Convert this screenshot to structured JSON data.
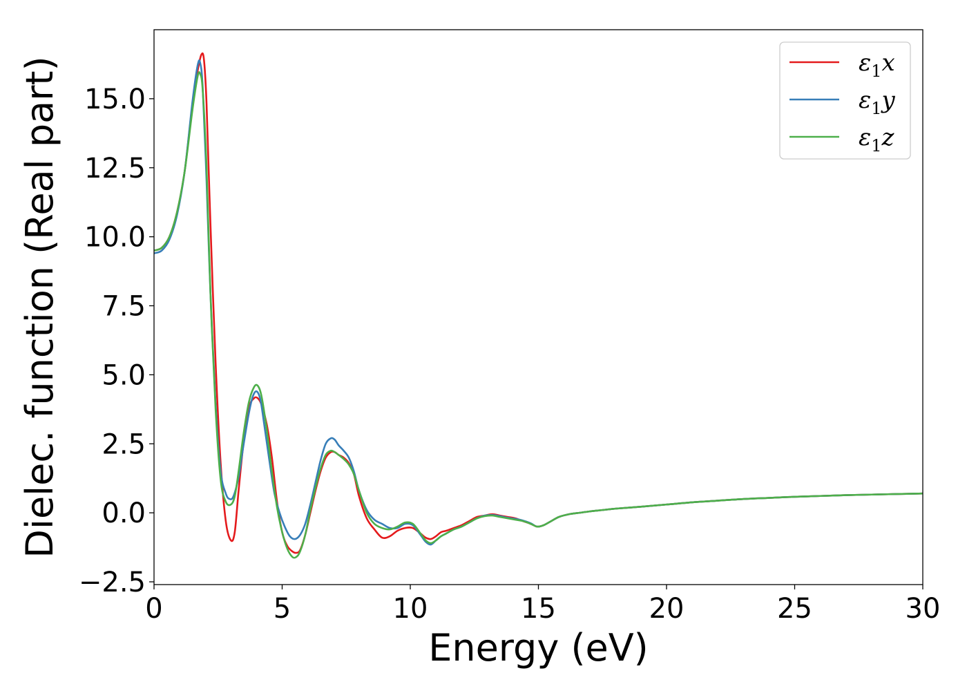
{
  "chart_data": {
    "type": "line",
    "title": "",
    "xlabel": "Energy (eV)",
    "ylabel": "Dielec. function (Real part)",
    "xlim": [
      0,
      30
    ],
    "ylim": [
      -2.6,
      17.5
    ],
    "xticks": [
      0,
      5,
      10,
      15,
      20,
      25,
      30
    ],
    "xtick_labels": [
      "0",
      "5",
      "10",
      "15",
      "20",
      "25",
      "30"
    ],
    "yticks": [
      -2.5,
      0.0,
      2.5,
      5.0,
      7.5,
      10.0,
      12.5,
      15.0
    ],
    "ytick_labels": [
      "−2.5",
      "0.0",
      "2.5",
      "5.0",
      "7.5",
      "10.0",
      "12.5",
      "15.0"
    ],
    "grid": false,
    "legend_position": "top-right",
    "series": [
      {
        "name": "ε₁x",
        "symbol": "ε",
        "subscript": "1",
        "suffix": "x",
        "color": "#e41a1c",
        "x": [
          0,
          0.3,
          0.6,
          0.9,
          1.2,
          1.5,
          1.7,
          1.85,
          1.95,
          2.05,
          2.2,
          2.4,
          2.6,
          2.8,
          3.0,
          3.15,
          3.3,
          3.5,
          3.7,
          3.9,
          4.05,
          4.2,
          4.4,
          4.6,
          4.8,
          5.0,
          5.2,
          5.4,
          5.55,
          5.7,
          5.9,
          6.1,
          6.3,
          6.5,
          6.7,
          6.9,
          7.05,
          7.2,
          7.4,
          7.6,
          7.8,
          8.0,
          8.3,
          8.6,
          8.9,
          9.2,
          9.5,
          9.8,
          10.1,
          10.4,
          10.6,
          10.8,
          11.0,
          11.2,
          11.4,
          11.7,
          12.0,
          12.3,
          12.6,
          12.9,
          13.2,
          13.5,
          13.8,
          14.1,
          14.4,
          14.7,
          14.95,
          15.2,
          15.5,
          15.8,
          16.2,
          16.6,
          17.0,
          17.5,
          18,
          19,
          20,
          21,
          22,
          23,
          24,
          25,
          26,
          27,
          28,
          29,
          30
        ],
        "y": [
          9.5,
          9.6,
          10.0,
          10.9,
          12.4,
          14.8,
          16.0,
          16.6,
          16.4,
          14.8,
          10.5,
          5.5,
          1.8,
          -0.3,
          -1.0,
          -0.7,
          0.8,
          2.6,
          3.8,
          4.15,
          4.15,
          3.9,
          3.2,
          2.0,
          0.4,
          -0.7,
          -1.2,
          -1.4,
          -1.45,
          -1.35,
          -0.8,
          0.0,
          0.8,
          1.5,
          2.0,
          2.2,
          2.2,
          2.1,
          2.0,
          1.8,
          1.4,
          0.6,
          -0.2,
          -0.6,
          -0.9,
          -0.85,
          -0.65,
          -0.55,
          -0.55,
          -0.75,
          -0.9,
          -0.95,
          -0.85,
          -0.7,
          -0.65,
          -0.55,
          -0.45,
          -0.3,
          -0.15,
          -0.1,
          -0.05,
          -0.1,
          -0.15,
          -0.2,
          -0.3,
          -0.4,
          -0.5,
          -0.45,
          -0.3,
          -0.15,
          -0.05,
          0.0,
          0.05,
          0.1,
          0.15,
          0.22,
          0.3,
          0.38,
          0.44,
          0.5,
          0.54,
          0.58,
          0.61,
          0.64,
          0.66,
          0.68,
          0.7
        ]
      },
      {
        "name": "ε₁y",
        "symbol": "ε",
        "subscript": "1",
        "suffix": "y",
        "color": "#377eb8",
        "x": [
          0,
          0.3,
          0.6,
          0.9,
          1.2,
          1.5,
          1.7,
          1.8,
          1.9,
          2.05,
          2.2,
          2.4,
          2.6,
          2.8,
          2.95,
          3.1,
          3.3,
          3.5,
          3.7,
          3.85,
          4.0,
          4.15,
          4.3,
          4.5,
          4.7,
          4.9,
          5.1,
          5.3,
          5.5,
          5.7,
          5.9,
          6.1,
          6.3,
          6.5,
          6.7,
          6.9,
          7.05,
          7.2,
          7.4,
          7.6,
          7.8,
          8.0,
          8.3,
          8.6,
          8.9,
          9.2,
          9.5,
          9.8,
          10.1,
          10.4,
          10.6,
          10.8,
          11.0,
          11.2,
          11.4,
          11.7,
          12.0,
          12.3,
          12.6,
          12.9,
          13.2,
          13.5,
          13.8,
          14.1,
          14.4,
          14.7,
          14.95,
          15.2,
          15.5,
          15.8,
          16.2,
          16.6,
          17.0,
          17.5,
          18,
          19,
          20,
          21,
          22,
          23,
          24,
          25,
          26,
          27,
          28,
          29,
          30
        ],
        "y": [
          9.4,
          9.5,
          9.9,
          10.8,
          12.4,
          14.9,
          16.2,
          16.3,
          15.4,
          12.0,
          8.0,
          4.0,
          1.5,
          0.7,
          0.5,
          0.6,
          1.3,
          2.5,
          3.6,
          4.2,
          4.4,
          4.1,
          3.2,
          1.9,
          0.7,
          0.0,
          -0.5,
          -0.85,
          -0.95,
          -0.8,
          -0.4,
          0.3,
          1.1,
          1.9,
          2.5,
          2.7,
          2.65,
          2.45,
          2.25,
          2.0,
          1.5,
          0.8,
          0.1,
          -0.25,
          -0.4,
          -0.55,
          -0.55,
          -0.4,
          -0.45,
          -0.8,
          -1.05,
          -1.15,
          -1.0,
          -0.85,
          -0.75,
          -0.6,
          -0.5,
          -0.35,
          -0.2,
          -0.1,
          -0.08,
          -0.12,
          -0.18,
          -0.22,
          -0.28,
          -0.38,
          -0.5,
          -0.45,
          -0.3,
          -0.15,
          -0.05,
          0.0,
          0.05,
          0.1,
          0.15,
          0.22,
          0.3,
          0.38,
          0.44,
          0.5,
          0.54,
          0.58,
          0.61,
          0.64,
          0.66,
          0.68,
          0.7
        ]
      },
      {
        "name": "ε₁z",
        "symbol": "ε",
        "subscript": "1",
        "suffix": "z",
        "color": "#4daf4a",
        "x": [
          0,
          0.3,
          0.6,
          0.9,
          1.2,
          1.5,
          1.7,
          1.8,
          1.9,
          2.05,
          2.2,
          2.4,
          2.6,
          2.8,
          3.0,
          3.15,
          3.3,
          3.5,
          3.7,
          3.9,
          4.05,
          4.2,
          4.4,
          4.6,
          4.8,
          5.0,
          5.2,
          5.4,
          5.55,
          5.7,
          5.9,
          6.1,
          6.3,
          6.5,
          6.7,
          6.9,
          7.05,
          7.2,
          7.4,
          7.6,
          7.8,
          8.0,
          8.3,
          8.6,
          8.9,
          9.2,
          9.5,
          9.8,
          10.1,
          10.4,
          10.6,
          10.8,
          11.0,
          11.2,
          11.4,
          11.7,
          12.0,
          12.3,
          12.6,
          12.9,
          13.2,
          13.5,
          13.8,
          14.1,
          14.4,
          14.7,
          14.95,
          15.2,
          15.5,
          15.8,
          16.2,
          16.6,
          17.0,
          17.5,
          18,
          19,
          20,
          21,
          22,
          23,
          24,
          25,
          26,
          27,
          28,
          29,
          30
        ],
        "y": [
          9.5,
          9.6,
          10.0,
          10.9,
          12.4,
          14.6,
          15.8,
          15.9,
          15.3,
          12.5,
          8.0,
          3.8,
          1.2,
          0.4,
          0.3,
          0.6,
          1.5,
          2.9,
          4.0,
          4.55,
          4.6,
          4.2,
          3.0,
          1.5,
          0.2,
          -0.7,
          -1.3,
          -1.6,
          -1.6,
          -1.4,
          -0.8,
          0.1,
          0.9,
          1.6,
          2.1,
          2.25,
          2.2,
          2.1,
          1.95,
          1.75,
          1.4,
          0.8,
          0.0,
          -0.4,
          -0.55,
          -0.6,
          -0.5,
          -0.35,
          -0.4,
          -0.75,
          -1.0,
          -1.1,
          -1.0,
          -0.85,
          -0.75,
          -0.6,
          -0.5,
          -0.35,
          -0.2,
          -0.12,
          -0.1,
          -0.15,
          -0.2,
          -0.25,
          -0.3,
          -0.4,
          -0.5,
          -0.45,
          -0.3,
          -0.15,
          -0.05,
          0.0,
          0.05,
          0.1,
          0.15,
          0.22,
          0.3,
          0.38,
          0.44,
          0.5,
          0.54,
          0.58,
          0.61,
          0.64,
          0.66,
          0.68,
          0.7
        ]
      }
    ]
  }
}
